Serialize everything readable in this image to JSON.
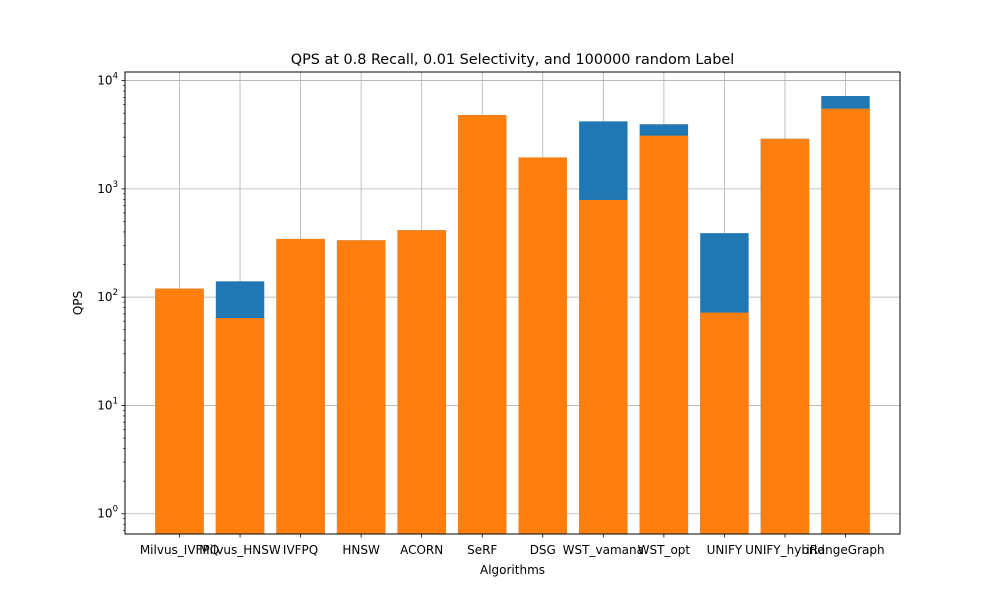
{
  "chart_data": {
    "type": "bar",
    "title": "QPS at 0.8 Recall, 0.01 Selectivity, and 100000 random Label",
    "xlabel": "Algorithms",
    "ylabel": "QPS",
    "yscale": "log",
    "ylim": [
      0.65,
      12000
    ],
    "yticks": [
      {
        "value": 1,
        "base": "10",
        "exp": "0"
      },
      {
        "value": 10,
        "base": "10",
        "exp": "1"
      },
      {
        "value": 100,
        "base": "10",
        "exp": "2"
      },
      {
        "value": 1000,
        "base": "10",
        "exp": "3"
      },
      {
        "value": 10000,
        "base": "10",
        "exp": "4"
      }
    ],
    "grid": true,
    "categories": [
      "Milvus_IVFPQ",
      "Milvus_HNSW",
      "IVFPQ",
      "HNSW",
      "ACORN",
      "SeRF",
      "DSG",
      "WST_vamana",
      "WST_opt",
      "UNIFY",
      "UNIFY_hybrid",
      "iRangeGraph"
    ],
    "series": [
      {
        "color": "#1f77b4",
        "values": [
          120,
          140,
          345,
          335,
          415,
          4800,
          1950,
          4200,
          3950,
          390,
          2900,
          7200
        ]
      },
      {
        "color": "#ff7f0e",
        "values": [
          120,
          64,
          345,
          335,
          415,
          4800,
          1950,
          790,
          3100,
          72,
          2900,
          5500
        ]
      }
    ]
  }
}
